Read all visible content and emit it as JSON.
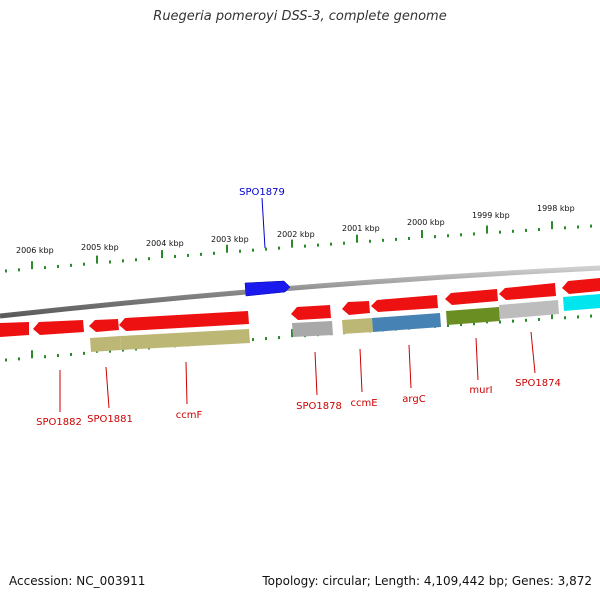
{
  "title": "Ruegeria pomeroyi DSS-3, complete genome",
  "footer": {
    "accession": "Accession: NC_003911",
    "summary": "Topology: circular; Length: 4,109,442 bp; Genes: 3,872"
  },
  "colors": {
    "backbone": "#888888",
    "tick": "#2a8a2a",
    "cds_forward": "#ee1111",
    "highlight": "#1a1aee",
    "label_reverse": "#cc0000",
    "label_highlight": "#0000cc"
  },
  "scale_labels": [
    "2006 kbp",
    "2005 kbp",
    "2004 kbp",
    "2003 kbp",
    "2002 kbp",
    "2001 kbp",
    "2000 kbp",
    "1999 kbp",
    "1998 kbp"
  ],
  "highlight_gene": {
    "name": "SPO1879",
    "strand": "+"
  },
  "gene_labels": [
    {
      "name": "SPO1882",
      "color": "#cc0000"
    },
    {
      "name": "SPO1881",
      "color": "#cc0000"
    },
    {
      "name": "ccmF",
      "color": "#cc0000"
    },
    {
      "name": "SPO1878",
      "color": "#cc0000"
    },
    {
      "name": "ccmE",
      "color": "#cc0000"
    },
    {
      "name": "argC",
      "color": "#cc0000"
    },
    {
      "name": "murI",
      "color": "#cc0000"
    },
    {
      "name": "SPO1874",
      "color": "#cc0000"
    }
  ],
  "reverse_strand_fills": [
    "#bdb776",
    "#bdb776",
    "#a9a9a9",
    "#bdb776",
    "#4682b4",
    "#6b8e23",
    "#bdbdbd",
    "#00e5ee"
  ]
}
